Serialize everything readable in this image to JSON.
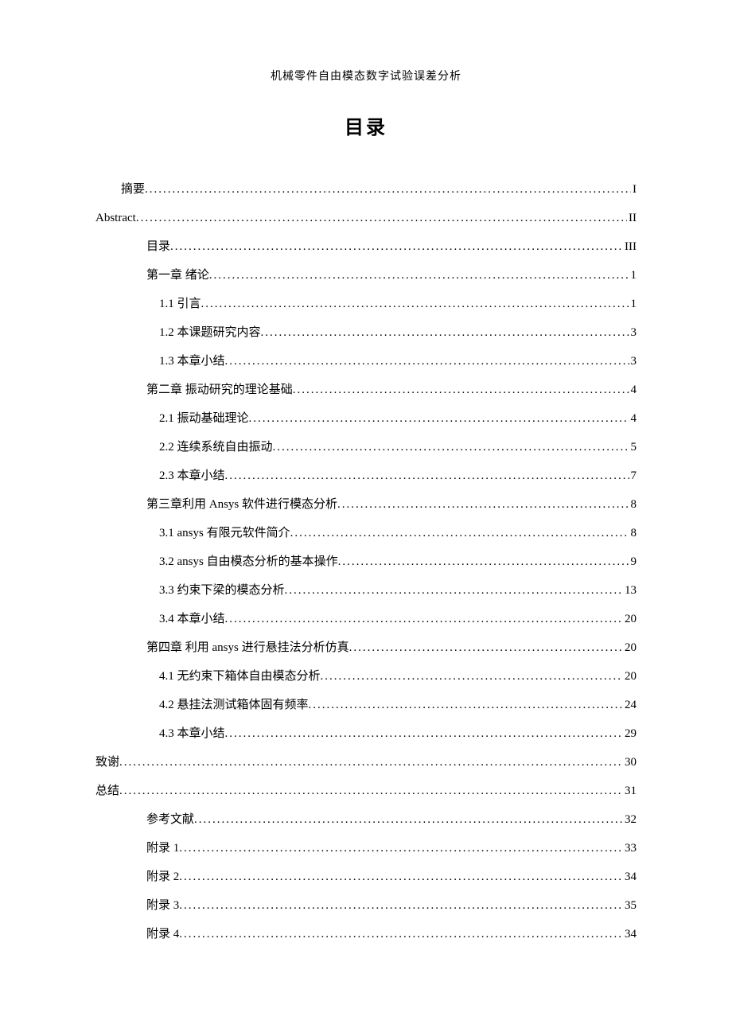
{
  "header": "机械零件自由模态数字试验误差分析",
  "title": "目录",
  "toc": [
    {
      "label": "摘要",
      "page": "I",
      "indent": 1
    },
    {
      "label": "Abstract",
      "page": "II",
      "indent": 0
    },
    {
      "label": "目录",
      "page": "III",
      "indent": 2
    },
    {
      "label": "第一章 绪论",
      "page": "1",
      "indent": 2
    },
    {
      "label": "1.1 引言",
      "page": "1",
      "indent": 3
    },
    {
      "label": "1.2 本课题研究内容",
      "page": "3",
      "indent": 3
    },
    {
      "label": "1.3 本章小结 ",
      "page": "3",
      "indent": 3
    },
    {
      "label": "第二章 振动研究的理论基础",
      "page": "4",
      "indent": 2
    },
    {
      "label": "2.1 振动基础理论",
      "page": "4",
      "indent": 3
    },
    {
      "label": "2.2 连续系统自由振动",
      "page": "5",
      "indent": 3
    },
    {
      "label": "2.3 本章小结 ",
      "page": "7",
      "indent": 3
    },
    {
      "label": "第三章利用 Ansys 软件进行模态分析",
      "page": "8",
      "indent": 2
    },
    {
      "label": "3.1 ansys 有限元软件简介 ",
      "page": "8",
      "indent": 3
    },
    {
      "label": "3.2 ansys 自由模态分析的基本操作 ",
      "page": "9",
      "indent": 3
    },
    {
      "label": "3.3 约束下梁的模态分析 ",
      "page": "13",
      "indent": 3
    },
    {
      "label": "3.4 本章小结 ",
      "page": "20",
      "indent": 3
    },
    {
      "label": "第四章 利用 ansys 进行悬挂法分析仿真",
      "page": "20",
      "indent": 2
    },
    {
      "label": "4.1 无约束下箱体自由模态分析 ",
      "page": "20",
      "indent": 3
    },
    {
      "label": "4.2 悬挂法测试箱体固有频率 ",
      "page": "24",
      "indent": 3
    },
    {
      "label": "4.3 本章小结 ",
      "page": "29",
      "indent": 3
    },
    {
      "label": "致谢",
      "page": "30",
      "indent": 0
    },
    {
      "label": "总结",
      "page": "31",
      "indent": 0
    },
    {
      "label": "参考文献",
      "page": "32",
      "indent": 2
    },
    {
      "label": "附录 1 ",
      "page": "33",
      "indent": 2
    },
    {
      "label": "附录 2 ",
      "page": "34",
      "indent": 2
    },
    {
      "label": "附录 3 ",
      "page": "35",
      "indent": 2
    },
    {
      "label": "附录 4 ",
      "page": "34",
      "indent": 2
    }
  ]
}
